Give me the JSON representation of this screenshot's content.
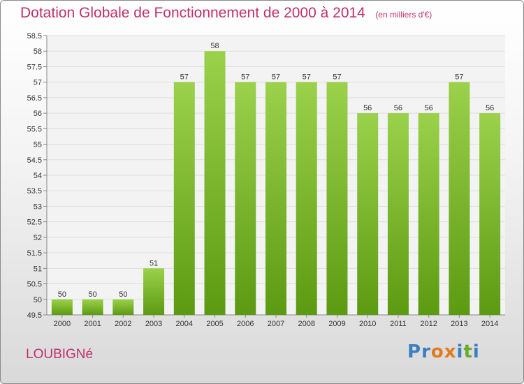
{
  "title": "Dotation Globale de Fonctionnement de 2000 à 2014",
  "unit": "(en milliers d'€)",
  "commune": "LOUBIGNé",
  "logo": {
    "text": "Proxiti",
    "letters": [
      {
        "ch": "P",
        "color": "#3a7fc1"
      },
      {
        "ch": "r",
        "color": "#3a7fc1"
      },
      {
        "ch": "o",
        "color": "#e07b1f"
      },
      {
        "ch": "x",
        "color": "#e07b1f"
      },
      {
        "ch": "i",
        "color": "#3a7fc1"
      },
      {
        "ch": "t",
        "color": "#6aaa2a"
      },
      {
        "ch": "i",
        "color": "#3a7fc1"
      }
    ]
  },
  "colors": {
    "title": "#c0306a",
    "bar_top": "#9bd14b",
    "bar_bottom": "#5c9a12"
  },
  "chart_data": {
    "type": "bar",
    "categories": [
      "2000",
      "2001",
      "2002",
      "2003",
      "2004",
      "2005",
      "2006",
      "2007",
      "2008",
      "2009",
      "2010",
      "2011",
      "2012",
      "2013",
      "2014"
    ],
    "values": [
      50,
      50,
      50,
      51,
      57,
      58,
      57,
      57,
      57,
      57,
      56,
      56,
      56,
      57,
      56
    ],
    "data_labels": [
      "50",
      "50",
      "50",
      "51",
      "57",
      "58",
      "57",
      "57",
      "57",
      "57",
      "56",
      "56",
      "56",
      "57",
      "56"
    ],
    "ylim": [
      49.5,
      58.5
    ],
    "yticks": [
      "49.5",
      "50",
      "50.5",
      "51",
      "51.5",
      "52",
      "52.5",
      "53",
      "53.5",
      "54",
      "54.5",
      "55",
      "55.5",
      "56",
      "56.5",
      "57",
      "57.5",
      "58",
      "58.5"
    ],
    "grid": true,
    "title": "Dotation Globale de Fonctionnement de 2000 à 2014",
    "xlabel": "",
    "ylabel": ""
  }
}
